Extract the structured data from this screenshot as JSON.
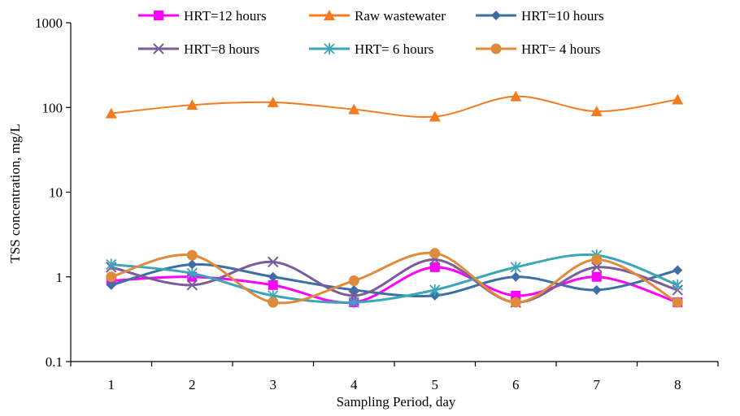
{
  "chart_data": {
    "type": "line",
    "title": "",
    "xlabel": "Sampling Period, day",
    "ylabel": "TSS concentration, mg/L",
    "yscale": "log",
    "ylim": [
      0.1,
      1000
    ],
    "xlim": [
      0.5,
      8.5
    ],
    "grid": false,
    "legend": "top",
    "smoothed": true,
    "categories": [
      "1",
      "2",
      "3",
      "4",
      "5",
      "6",
      "7",
      "8"
    ],
    "yticks": [
      "0.1",
      "1",
      "10",
      "100",
      "1000"
    ],
    "series": [
      {
        "name": "HRT=12 hours",
        "color": "#ff00ff",
        "marker": "square",
        "values": [
          0.9,
          1.0,
          0.8,
          0.5,
          1.3,
          0.6,
          1.0,
          0.5
        ]
      },
      {
        "name": "Raw wastewater",
        "color": "#f57c1e",
        "marker": "triangle",
        "values": [
          85,
          107,
          115,
          95,
          78,
          135,
          90,
          124
        ]
      },
      {
        "name": "HRT=10 hours",
        "color": "#3d6fa6",
        "marker": "diamond",
        "values": [
          0.8,
          1.4,
          1.0,
          0.7,
          0.6,
          1.0,
          0.7,
          1.2
        ]
      },
      {
        "name": "HRT=8 hours",
        "color": "#7b5b9a",
        "marker": "x",
        "values": [
          1.3,
          0.8,
          1.5,
          0.6,
          1.6,
          0.5,
          1.3,
          0.7
        ]
      },
      {
        "name": "HRT= 6 hours",
        "color": "#3aa6b8",
        "marker": "asterisk",
        "values": [
          1.4,
          1.1,
          0.6,
          0.5,
          0.7,
          1.3,
          1.8,
          0.8
        ]
      },
      {
        "name": "HRT= 4 hours",
        "color": "#e08a3c",
        "marker": "circle",
        "values": [
          1.0,
          1.8,
          0.5,
          0.9,
          1.9,
          0.5,
          1.6,
          0.5
        ]
      }
    ]
  }
}
